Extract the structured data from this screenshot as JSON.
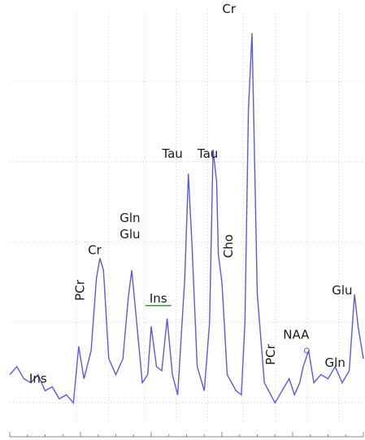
{
  "chart_data": {
    "type": "line",
    "title": "",
    "xlabel": "",
    "ylabel": "",
    "grid": true,
    "line_color": "#5a5ae6",
    "grid_color": "#b8b8b8",
    "underline_color": "#3a9a3a",
    "x_range": [
      0,
      1
    ],
    "y_range": [
      0,
      1
    ],
    "series": [
      {
        "values": [
          [
            0.0,
            0.12
          ],
          [
            0.02,
            0.14
          ],
          [
            0.04,
            0.11
          ],
          [
            0.06,
            0.1
          ],
          [
            0.08,
            0.12
          ],
          [
            0.1,
            0.08
          ],
          [
            0.12,
            0.09
          ],
          [
            0.14,
            0.06
          ],
          [
            0.16,
            0.07
          ],
          [
            0.18,
            0.05
          ],
          [
            0.195,
            0.19
          ],
          [
            0.21,
            0.11
          ],
          [
            0.23,
            0.18
          ],
          [
            0.245,
            0.36
          ],
          [
            0.255,
            0.41
          ],
          [
            0.265,
            0.38
          ],
          [
            0.28,
            0.16
          ],
          [
            0.3,
            0.12
          ],
          [
            0.32,
            0.16
          ],
          [
            0.335,
            0.31
          ],
          [
            0.345,
            0.38
          ],
          [
            0.36,
            0.24
          ],
          [
            0.375,
            0.1
          ],
          [
            0.39,
            0.12
          ],
          [
            0.4,
            0.24
          ],
          [
            0.415,
            0.14
          ],
          [
            0.43,
            0.13
          ],
          [
            0.445,
            0.26
          ],
          [
            0.46,
            0.12
          ],
          [
            0.475,
            0.07
          ],
          [
            0.495,
            0.36
          ],
          [
            0.505,
            0.62
          ],
          [
            0.515,
            0.45
          ],
          [
            0.53,
            0.14
          ],
          [
            0.55,
            0.08
          ],
          [
            0.565,
            0.25
          ],
          [
            0.575,
            0.68
          ],
          [
            0.585,
            0.6
          ],
          [
            0.59,
            0.42
          ],
          [
            0.6,
            0.35
          ],
          [
            0.615,
            0.12
          ],
          [
            0.64,
            0.08
          ],
          [
            0.655,
            0.07
          ],
          [
            0.665,
            0.25
          ],
          [
            0.675,
            0.78
          ],
          [
            0.685,
            0.97
          ],
          [
            0.7,
            0.32
          ],
          [
            0.72,
            0.1
          ],
          [
            0.75,
            0.05
          ],
          [
            0.77,
            0.08
          ],
          [
            0.79,
            0.11
          ],
          [
            0.805,
            0.07
          ],
          [
            0.82,
            0.1
          ],
          [
            0.83,
            0.14
          ],
          [
            0.845,
            0.18
          ],
          [
            0.86,
            0.1
          ],
          [
            0.88,
            0.12
          ],
          [
            0.9,
            0.11
          ],
          [
            0.92,
            0.14
          ],
          [
            0.94,
            0.1
          ],
          [
            0.96,
            0.13
          ],
          [
            0.975,
            0.32
          ],
          [
            0.985,
            0.24
          ],
          [
            1.0,
            0.16
          ]
        ]
      }
    ],
    "annotations": [
      {
        "text": "Ins",
        "x": 0.08,
        "y": 0.1
      },
      {
        "text": "PCr",
        "x": 0.21,
        "y": 0.33,
        "rotated": true
      },
      {
        "text": "Cr",
        "x": 0.24,
        "y": 0.42
      },
      {
        "text": "Gln",
        "x": 0.34,
        "y": 0.5
      },
      {
        "text": "Glu",
        "x": 0.34,
        "y": 0.46
      },
      {
        "text": "Ins",
        "x": 0.42,
        "y": 0.3,
        "underlined": true
      },
      {
        "text": "Tau",
        "x": 0.46,
        "y": 0.66
      },
      {
        "text": "Tau",
        "x": 0.56,
        "y": 0.66
      },
      {
        "text": "Cr",
        "x": 0.62,
        "y": 1.02
      },
      {
        "text": "Cho",
        "x": 0.63,
        "y": 0.44,
        "rotated": true
      },
      {
        "text": "PCr",
        "x": 0.75,
        "y": 0.17,
        "rotated": true
      },
      {
        "text": "NAA",
        "x": 0.81,
        "y": 0.21
      },
      {
        "text": "Gln",
        "x": 0.92,
        "y": 0.14
      },
      {
        "text": "Glu",
        "x": 0.94,
        "y": 0.32
      }
    ]
  }
}
